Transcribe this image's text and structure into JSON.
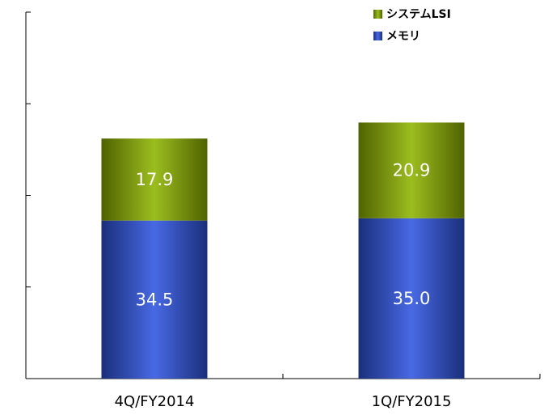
{
  "chart_data": {
    "type": "stacked_bar",
    "categories": [
      "4Q/FY2014",
      "1Q/FY2015"
    ],
    "series": [
      {
        "name": "メモリ",
        "color": "#2f55e0",
        "values": [
          34.5,
          35.0
        ],
        "value_labels": [
          "34.5",
          "35.0"
        ]
      },
      {
        "name": "システムLSI",
        "color": "#8fb400",
        "values": [
          17.9,
          20.9
        ],
        "value_labels": [
          "17.9",
          "20.9"
        ]
      }
    ],
    "ylim": [
      0,
      80
    ],
    "yticks": [
      0,
      20,
      40,
      60,
      80
    ]
  }
}
